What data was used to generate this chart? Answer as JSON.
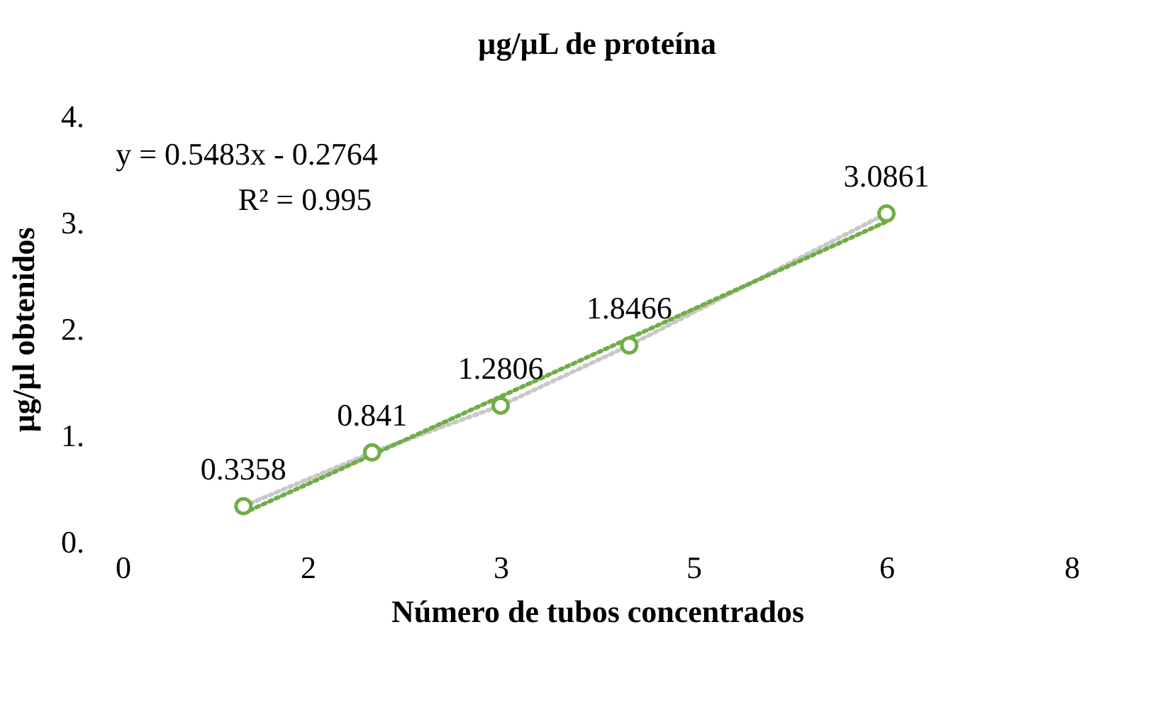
{
  "chart_data": {
    "type": "scatter",
    "title": "µg/µL de proteína",
    "xlabel": "Número de tubos concentrados",
    "ylabel": "µg/µl obtenidos",
    "x": [
      1,
      2,
      3,
      4,
      6
    ],
    "xlim": [
      0,
      7.5
    ],
    "ylim": [
      0,
      4
    ],
    "xticks": [
      0,
      {
        "value": 1.5,
        "label": "2"
      },
      3,
      {
        "value": 4.5,
        "label": "5"
      },
      6,
      {
        "value": 7.5,
        "label": "8"
      }
    ],
    "yticks": [
      {
        "value": 0,
        "label": "0."
      },
      {
        "value": 1,
        "label": "1."
      },
      {
        "value": 2,
        "label": "2."
      },
      {
        "value": 3,
        "label": "3."
      },
      {
        "value": 4,
        "label": "4."
      }
    ],
    "marker": "circle",
    "series": [
      {
        "type": "line",
        "color": "#c8c8c8",
        "line_style": "dotted",
        "marker": "none",
        "values": [
          0.3358,
          0.841,
          1.2806,
          1.8466,
          3.0861
        ]
      },
      {
        "type": "line",
        "x": [
          1,
          6
        ],
        "color": "#70ad47",
        "line_style": "dotted",
        "marker": "none",
        "values": [
          0.27,
          3.01
        ]
      },
      {
        "color": "#70ad47",
        "values": [
          0.3358,
          0.841,
          1.2806,
          1.8466,
          3.0861
        ],
        "value_labels": [
          "0.3358",
          "0.841",
          "1.2806",
          "1.8466",
          "3.0861"
        ]
      }
    ],
    "annotations": [
      "y = 0.5483x - 0.2764",
      "R² = 0.995"
    ]
  }
}
